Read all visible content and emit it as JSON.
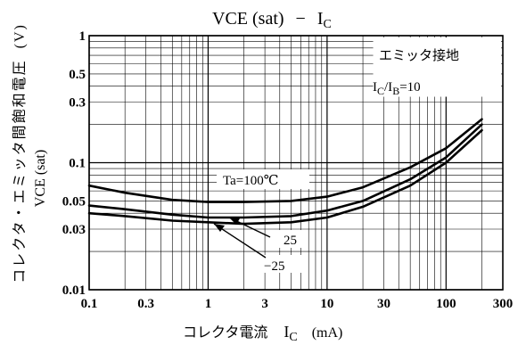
{
  "chart_data": {
    "type": "line",
    "title_main": "VCE (sat)",
    "title_dash": "−",
    "title_ic": "I",
    "title_ic_sub": "C",
    "xlabel": "コレクタ電流",
    "xlabel_symbol": "I",
    "xlabel_symbol_sub": "C",
    "xlabel_unit": "(mA)",
    "ylabel_jp": "コレクタ・エミッタ間飽和電圧",
    "ylabel_unit": "(V)",
    "ylabel_symbol": "VCE (sat)",
    "x_scale": "log",
    "y_scale": "log",
    "xlim": [
      0.1,
      300
    ],
    "ylim": [
      0.01,
      1
    ],
    "x_ticks": [
      0.1,
      0.3,
      1,
      3,
      10,
      30,
      100,
      300
    ],
    "x_tick_labels": [
      "0.1",
      "0.3",
      "1",
      "3",
      "10",
      "30",
      "100",
      "300"
    ],
    "y_ticks": [
      0.01,
      0.03,
      0.05,
      0.1,
      0.3,
      0.5,
      1
    ],
    "y_tick_labels": [
      "0.01",
      "0.03",
      "0.05",
      "0.1",
      "0.3",
      "0.5",
      "1"
    ],
    "grid": true,
    "condition_label": "エミッタ接地",
    "condition_ratio": "I",
    "condition_ratio_sub1": "C",
    "condition_ratio_mid": "/I",
    "condition_ratio_sub2": "B",
    "condition_ratio_value": "=10",
    "series": [
      {
        "name": "Ta=100℃",
        "x": [
          0.1,
          0.2,
          0.5,
          1,
          2,
          5,
          10,
          20,
          50,
          100,
          200
        ],
        "y": [
          0.066,
          0.058,
          0.051,
          0.049,
          0.049,
          0.05,
          0.054,
          0.064,
          0.092,
          0.13,
          0.22
        ]
      },
      {
        "name": "25",
        "x": [
          0.1,
          0.2,
          0.5,
          1,
          2,
          5,
          10,
          20,
          50,
          100,
          200
        ],
        "y": [
          0.046,
          0.043,
          0.039,
          0.037,
          0.037,
          0.038,
          0.042,
          0.05,
          0.074,
          0.11,
          0.2
        ]
      },
      {
        "name": "−25",
        "x": [
          0.1,
          0.2,
          0.5,
          1,
          2,
          5,
          10,
          20,
          50,
          100,
          200
        ],
        "y": [
          0.04,
          0.038,
          0.035,
          0.034,
          0.033,
          0.034,
          0.037,
          0.045,
          0.066,
          0.1,
          0.18
        ]
      }
    ]
  }
}
